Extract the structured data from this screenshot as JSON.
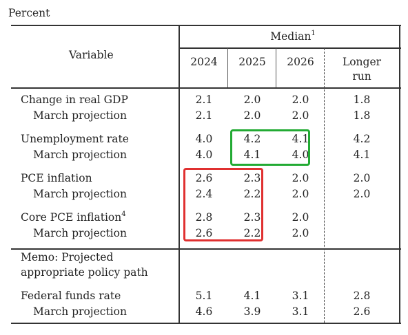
{
  "table": {
    "unit_label": "Percent",
    "header": {
      "variable": "Variable",
      "median": "Median",
      "median_footnote": "1",
      "years": [
        "2024",
        "2025",
        "2026"
      ],
      "longer_run_line1": "Longer",
      "longer_run_line2": "run"
    },
    "rows": [
      {
        "label": "Change in real GDP",
        "indent": false,
        "values": [
          "2.1",
          "2.0",
          "2.0",
          "1.8"
        ]
      },
      {
        "label": "March projection",
        "indent": true,
        "values": [
          "2.1",
          "2.0",
          "2.0",
          "1.8"
        ]
      },
      {
        "label": "Unemployment rate",
        "indent": false,
        "values": [
          "4.0",
          "4.2",
          "4.1",
          "4.2"
        ]
      },
      {
        "label": "March projection",
        "indent": true,
        "values": [
          "4.0",
          "4.1",
          "4.0",
          "4.1"
        ]
      },
      {
        "label": "PCE inflation",
        "indent": false,
        "values": [
          "2.6",
          "2.3",
          "2.0",
          "2.0"
        ]
      },
      {
        "label": "March projection",
        "indent": true,
        "values": [
          "2.4",
          "2.2",
          "2.0",
          "2.0"
        ]
      },
      {
        "label": "Core PCE inflation",
        "footnote": "4",
        "indent": false,
        "values": [
          "2.8",
          "2.3",
          "2.0",
          ""
        ]
      },
      {
        "label": "March projection",
        "indent": true,
        "values": [
          "2.6",
          "2.2",
          "2.0",
          ""
        ]
      },
      {
        "label": "Federal funds rate",
        "indent": false,
        "values": [
          "5.1",
          "4.1",
          "3.1",
          "2.8"
        ]
      },
      {
        "label": "March projection",
        "indent": true,
        "values": [
          "4.6",
          "3.9",
          "3.1",
          "2.6"
        ]
      }
    ],
    "memo_line1": "Memo: Projected",
    "memo_line2": "appropriate policy path"
  },
  "highlights": {
    "green_color": "#22aa33",
    "red_color": "#e03030"
  }
}
